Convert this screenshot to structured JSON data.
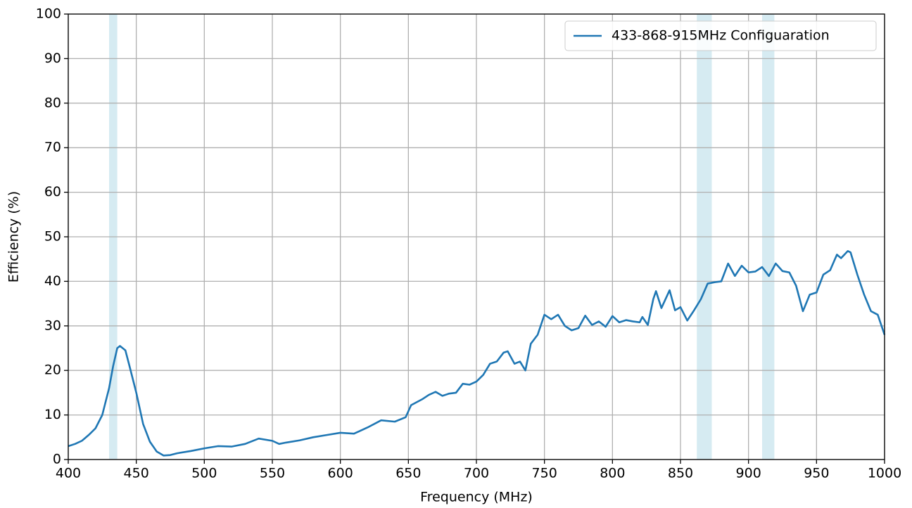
{
  "chart_data": {
    "type": "line",
    "x_label": "Frequency (MHz)",
    "y_label": "Efficiency (%)",
    "xlim": [
      400,
      1000
    ],
    "xticks": [
      400,
      450,
      500,
      550,
      600,
      650,
      700,
      750,
      800,
      850,
      900,
      950,
      1000
    ],
    "ylim": [
      0,
      100
    ],
    "yticks": [
      0,
      10,
      20,
      30,
      40,
      50,
      60,
      70,
      80,
      90,
      100
    ],
    "grid": true,
    "legend": "upper right",
    "spans": [
      [
        430,
        436
      ],
      [
        862,
        873
      ],
      [
        910,
        919
      ]
    ],
    "span_color": "#add8e6",
    "x": [
      400,
      405,
      410,
      415,
      420,
      425,
      430,
      433,
      436,
      438,
      442,
      445,
      450,
      455,
      460,
      465,
      470,
      475,
      480,
      490,
      500,
      510,
      520,
      530,
      540,
      550,
      555,
      560,
      570,
      580,
      590,
      600,
      610,
      620,
      630,
      640,
      648,
      652,
      660,
      665,
      670,
      675,
      680,
      685,
      690,
      695,
      700,
      705,
      710,
      715,
      720,
      723,
      728,
      732,
      736,
      740,
      745,
      750,
      755,
      760,
      765,
      770,
      775,
      780,
      785,
      790,
      795,
      800,
      805,
      810,
      815,
      820,
      822,
      826,
      830,
      832,
      836,
      842,
      846,
      850,
      855,
      860,
      865,
      870,
      875,
      880,
      885,
      890,
      895,
      900,
      905,
      910,
      915,
      920,
      925,
      930,
      935,
      940,
      945,
      950,
      955,
      960,
      965,
      968,
      973,
      975,
      980,
      985,
      990,
      995,
      1000
    ],
    "series": [
      {
        "name": "433-868-915MHz Configuaration",
        "color": "#1f77b4",
        "values": [
          3,
          3.5,
          4.2,
          5.5,
          7,
          10,
          16,
          21,
          25,
          25.5,
          24.5,
          21,
          15,
          8,
          4,
          1.8,
          0.9,
          1,
          1.4,
          1.9,
          2.5,
          3,
          2.9,
          3.5,
          4.7,
          4.2,
          3.5,
          3.8,
          4.3,
          5,
          5.5,
          6,
          5.8,
          7.2,
          8.8,
          8.5,
          9.5,
          12.2,
          13.5,
          14.5,
          15.2,
          14.3,
          14.8,
          15,
          17,
          16.8,
          17.5,
          19,
          21.5,
          22,
          24,
          24.3,
          21.5,
          22,
          20,
          26,
          28,
          32.5,
          31.5,
          32.5,
          30,
          29,
          29.5,
          32.3,
          30.2,
          31,
          29.8,
          32.2,
          30.8,
          31.3,
          31,
          30.8,
          32,
          30.2,
          36,
          37.8,
          34,
          38,
          33.5,
          34.2,
          31.2,
          33.5,
          36,
          39.5,
          39.8,
          40,
          44,
          41.2,
          43.5,
          42,
          42.2,
          43.2,
          41.2,
          44,
          42.3,
          42,
          39,
          33.3,
          37,
          37.5,
          41.5,
          42.5,
          46,
          45.2,
          46.8,
          46.5,
          41.5,
          37,
          33.3,
          32.5,
          28
        ]
      }
    ]
  }
}
